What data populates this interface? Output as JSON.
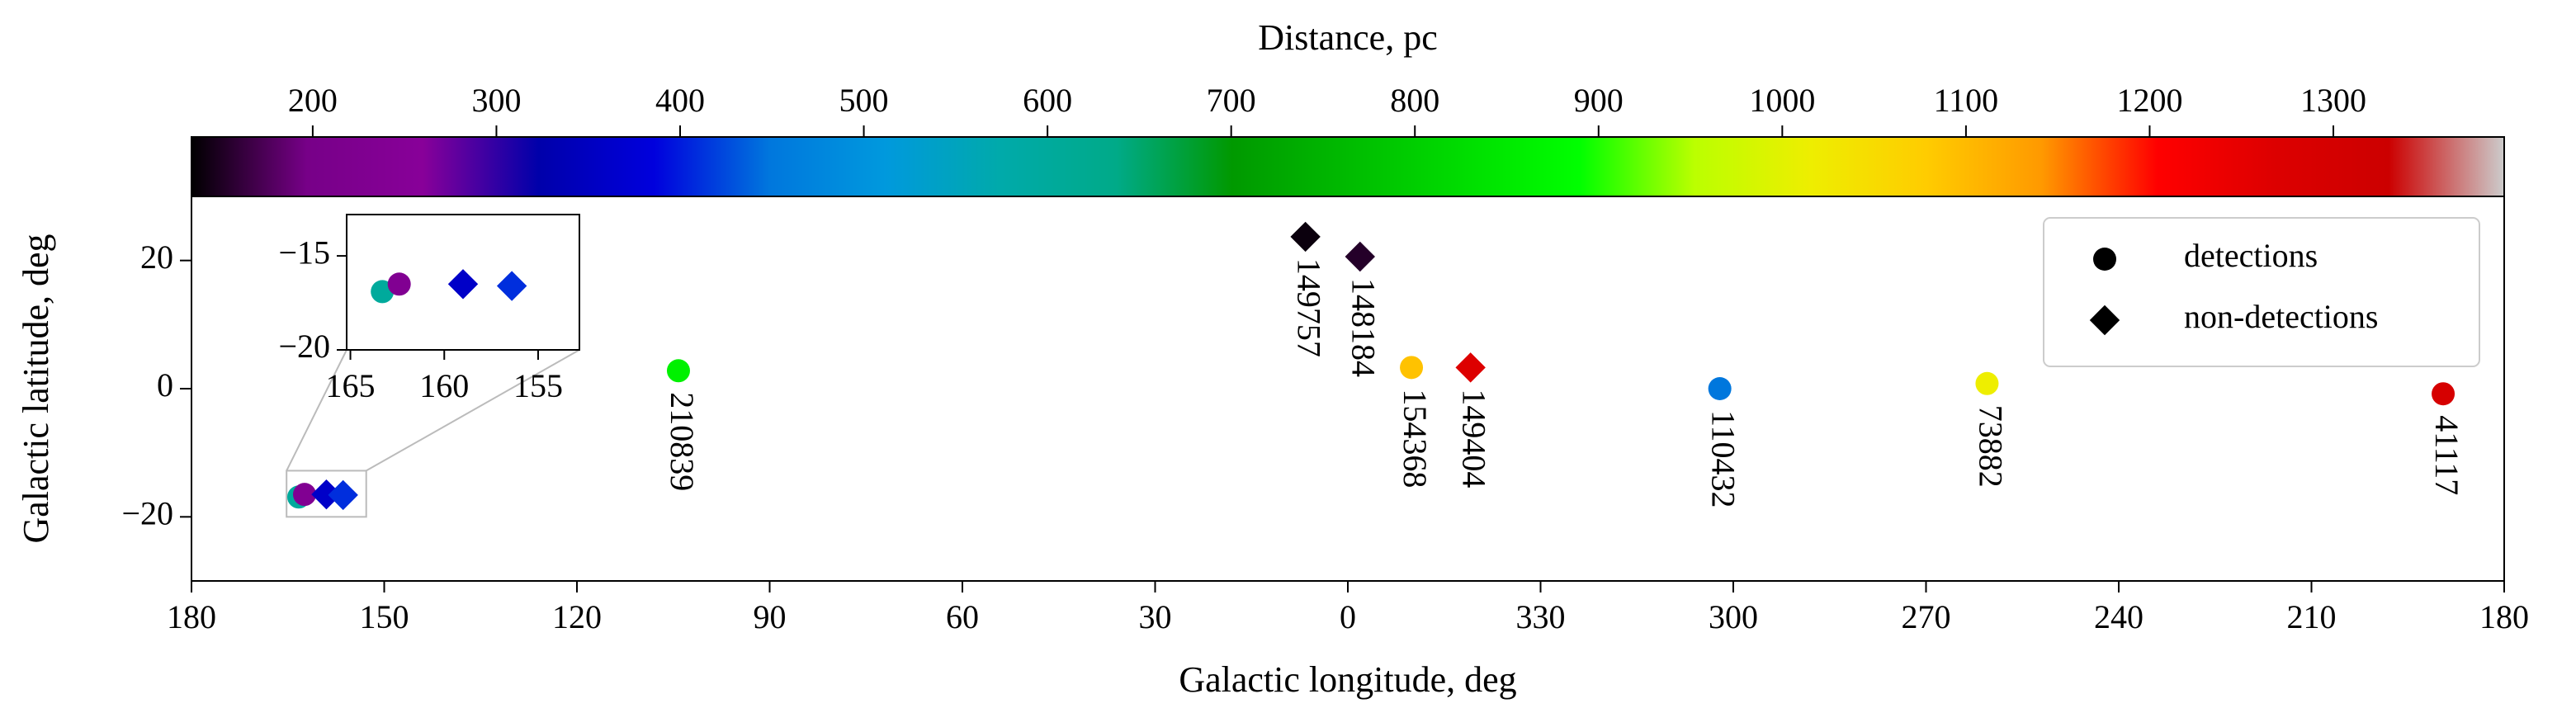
{
  "chart_data": {
    "type": "scatter",
    "xlabel": "Galactic longitude, deg",
    "ylabel": "Galactic latitude, deg",
    "xlim": [
      180,
      -180
    ],
    "ylim": [
      -30,
      30
    ],
    "xticks": [
      180,
      150,
      120,
      90,
      60,
      30,
      0,
      {
        "value": -30,
        "label": "330"
      },
      {
        "value": -60,
        "label": "300"
      },
      {
        "value": -90,
        "label": "270"
      },
      {
        "value": -120,
        "label": "240"
      },
      {
        "value": -150,
        "label": "210"
      },
      {
        "value": -180,
        "label": "180"
      }
    ],
    "yticks": [
      20,
      0,
      {
        "value": -20,
        "label": "−20"
      }
    ],
    "legend": "upper right",
    "series": [
      {
        "name": "detections",
        "marker": "circle",
        "x": [
          104.2,
          -9.9,
          -57.9,
          -99.5,
          -170.5,
          163.3,
          162.4
        ],
        "y": [
          2.8,
          3.3,
          0,
          0.8,
          -0.8,
          -16.9,
          -16.5
        ],
        "distance": [
          864,
          1091,
          449,
          1015,
          1292,
          600,
          235
        ],
        "labels": [
          "210839",
          "154368",
          "110432",
          "73882",
          "41117",
          null,
          null
        ]
      },
      {
        "name": "non-detections",
        "marker": "diamond",
        "x": [
          6.6,
          -1.9,
          -19.1,
          159,
          156.4
        ],
        "y": [
          23.7,
          20.6,
          3.3,
          -16.5,
          -16.6
        ],
        "distance": [
          140,
          153,
          1267,
          360,
          410
        ],
        "labels": [
          "149757",
          "148184",
          "149404",
          null,
          null
        ]
      }
    ],
    "colorbar": {
      "label": "Distance, pc",
      "lim": [
        134,
        1393
      ],
      "ticks": [
        200,
        300,
        400,
        500,
        600,
        700,
        800,
        900,
        1000,
        1100,
        1200,
        1300
      ],
      "colormap": [
        [
          0,
          "#000000"
        ],
        [
          0.05,
          "#770088"
        ],
        [
          0.1,
          "#880099"
        ],
        [
          0.15,
          "#0000aa"
        ],
        [
          0.2,
          "#0000dd"
        ],
        [
          0.25,
          "#0077dd"
        ],
        [
          0.3,
          "#0099dd"
        ],
        [
          0.35,
          "#00aaaa"
        ],
        [
          0.4,
          "#00aa88"
        ],
        [
          0.45,
          "#009900"
        ],
        [
          0.5,
          "#00bb00"
        ],
        [
          0.55,
          "#00dd00"
        ],
        [
          0.6,
          "#00ff00"
        ],
        [
          0.65,
          "#bbff00"
        ],
        [
          0.7,
          "#eeee00"
        ],
        [
          0.75,
          "#ffcc00"
        ],
        [
          0.8,
          "#ff9900"
        ],
        [
          0.85,
          "#ff0000"
        ],
        [
          0.9,
          "#dd0000"
        ],
        [
          0.95,
          "#cc0000"
        ],
        [
          1,
          "#cccccc"
        ]
      ]
    },
    "inset": {
      "xlim": [
        165.2,
        152.8
      ],
      "ylim": [
        -20,
        -12.8
      ],
      "xticks": [
        165,
        160,
        155
      ],
      "yticks": [
        {
          "value": -15,
          "label": "−15"
        },
        {
          "value": -20,
          "label": "−20"
        }
      ]
    }
  }
}
